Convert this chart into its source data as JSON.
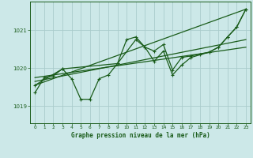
{
  "background_color": "#cce8e8",
  "grid_color": "#aacccc",
  "line_color": "#1a5c1a",
  "title": "Graphe pression niveau de la mer (hPa)",
  "xlim": [
    -0.5,
    23.5
  ],
  "ylim": [
    1018.55,
    1021.75
  ],
  "yticks": [
    1019,
    1020,
    1021
  ],
  "xticks": [
    0,
    1,
    2,
    3,
    4,
    5,
    6,
    7,
    8,
    9,
    10,
    11,
    12,
    13,
    14,
    15,
    16,
    17,
    18,
    19,
    20,
    21,
    22,
    23
  ],
  "series1": {
    "x": [
      0,
      1,
      2,
      3,
      4,
      5,
      6,
      7,
      8,
      9,
      10,
      11,
      12,
      13,
      14,
      15,
      16,
      17,
      18,
      19,
      20,
      21,
      22,
      23
    ],
    "y": [
      1019.35,
      1019.75,
      1019.8,
      1019.98,
      1019.72,
      1019.18,
      1019.18,
      1019.72,
      1019.82,
      1020.12,
      1020.75,
      1020.82,
      1020.55,
      1020.18,
      1020.45,
      1019.82,
      1020.08,
      1020.28,
      1020.35,
      1020.42,
      1020.55,
      1020.82,
      1021.08,
      1021.55
    ]
  },
  "series2": {
    "x": [
      0,
      3,
      9,
      11,
      12,
      13,
      14,
      15,
      16,
      17,
      19,
      20,
      21,
      22,
      23
    ],
    "y": [
      1019.55,
      1019.98,
      1020.12,
      1020.75,
      1020.55,
      1020.45,
      1020.62,
      1019.95,
      1020.28,
      1020.32,
      1020.42,
      1020.55,
      1020.82,
      1021.08,
      1021.55
    ]
  },
  "linear1": {
    "x": [
      0,
      23
    ],
    "y": [
      1019.75,
      1020.55
    ]
  },
  "linear2": {
    "x": [
      0,
      23
    ],
    "y": [
      1019.65,
      1020.75
    ]
  },
  "linear3": {
    "x": [
      0,
      23
    ],
    "y": [
      1019.55,
      1021.55
    ]
  }
}
